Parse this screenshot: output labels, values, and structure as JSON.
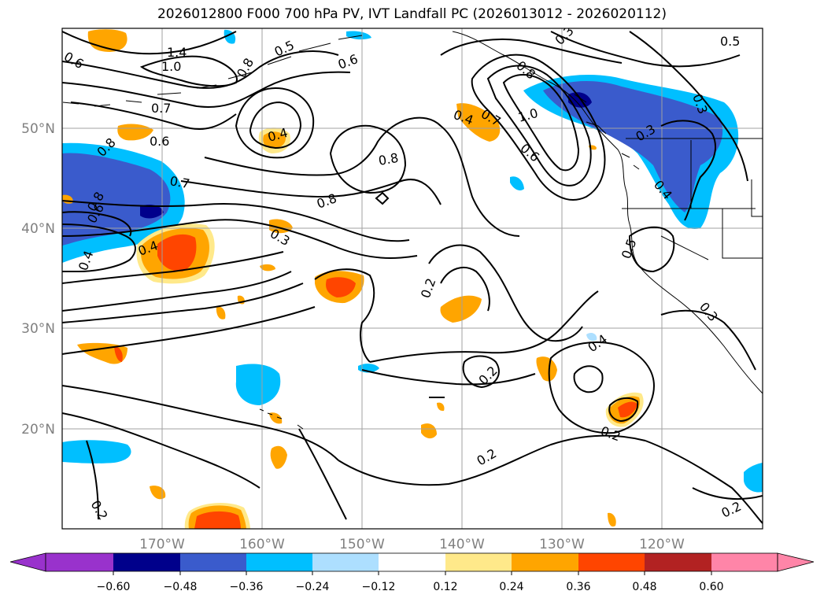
{
  "title": "2026012800 F000 700 hPa PV, IVT Landfall PC (2026013012 - 2026020112)",
  "latitude_labels": [
    "50°N",
    "40°N",
    "30°N",
    "20°N"
  ],
  "longitude_labels": [
    "170°W",
    "160°W",
    "150°W",
    "140°W",
    "130°W",
    "120°W"
  ],
  "colorbar": {
    "ticks": [
      "−0.60",
      "−0.48",
      "−0.36",
      "−0.24",
      "−0.12",
      "0.12",
      "0.24",
      "0.36",
      "0.48",
      "0.60"
    ],
    "colors": [
      "#9932CC",
      "#00008B",
      "#3A5BCC",
      "#00BFFF",
      "#ADDFFF",
      "#FFFFFF",
      "#FFE98A",
      "#FFA500",
      "#FF4500",
      "#B22222",
      "#FF85A8"
    ]
  },
  "contour_labels": [
    "0.6",
    "1.4",
    "1.0",
    "0.8",
    "0.6",
    "0.5",
    "0.3",
    "0.5",
    "0.8",
    "0.3",
    "0.7",
    "0.6",
    "0.4",
    "0.7",
    "1.0",
    "0.6",
    "0.3",
    "0.4",
    "0.8",
    "0.7",
    "0.8",
    "0.8",
    "0.4",
    "0.5",
    "0.4",
    "0.3",
    "0.8",
    "0.6",
    "0.2",
    "0.2",
    "0.4",
    "0.3",
    "0.4",
    "0.2",
    "0.2",
    "0.2",
    "0.2"
  ]
}
